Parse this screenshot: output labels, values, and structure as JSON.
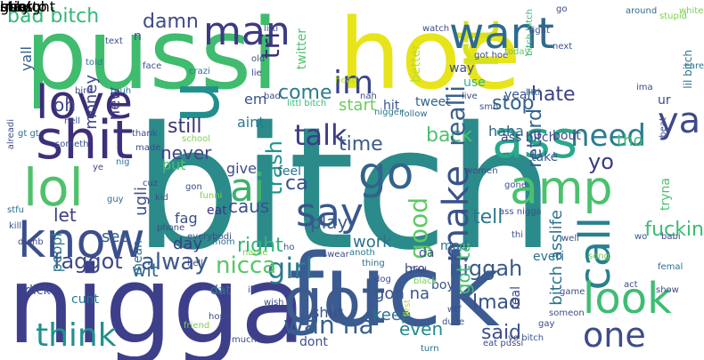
{
  "words": [
    {
      "text": "bitch",
      "color": "#2b8a8a",
      "rot": false
    },
    {
      "text": "nigga",
      "color": "#3e3f8a",
      "rot": false
    },
    {
      "text": "fuck",
      "color": "#3b5b92",
      "rot": false
    },
    {
      "text": "pussi",
      "color": "#3fbc6d",
      "rot": false
    },
    {
      "text": "hoe",
      "color": "#e7e419",
      "rot": false
    },
    {
      "text": "rt",
      "color": "#d6e21a",
      "rot": true
    },
    {
      "text": "u",
      "color": "#238f8c",
      "rot": true
    },
    {
      "text": "shit",
      "color": "#3d2f7a",
      "rot": false
    },
    {
      "text": "lol",
      "color": "#4fc16b",
      "rot": false
    },
    {
      "text": "know",
      "color": "#3b4f8c",
      "rot": false
    },
    {
      "text": "got",
      "color": "#3c5a8e",
      "rot": false
    },
    {
      "text": "ass",
      "color": "#2aa88a",
      "rot": false
    },
    {
      "text": "amp",
      "color": "#4ac16d",
      "rot": false
    },
    {
      "text": "want",
      "color": "#2f6b8e",
      "rot": false
    },
    {
      "text": "go",
      "color": "#33638d",
      "rot": false
    },
    {
      "text": "say",
      "color": "#38578c",
      "rot": false
    },
    {
      "text": "make",
      "color": "#3a528b",
      "rot": true
    },
    {
      "text": "call",
      "color": "#27808e",
      "rot": true
    },
    {
      "text": "look",
      "color": "#3fbc73",
      "rot": false
    },
    {
      "text": "one",
      "color": "#3e4c8a",
      "rot": false
    },
    {
      "text": "love",
      "color": "#3c2d78",
      "rot": false
    },
    {
      "text": "ai",
      "color": "#3db26c",
      "rot": false
    },
    {
      "text": "think",
      "color": "#21918c",
      "rot": false
    },
    {
      "text": "girl",
      "color": "#2c7c8e",
      "rot": false
    },
    {
      "text": "im",
      "color": "#38458a",
      "rot": false
    },
    {
      "text": "man",
      "color": "#3d3a84",
      "rot": false
    },
    {
      "text": "talk",
      "color": "#3d3d86",
      "rot": false
    },
    {
      "text": "need",
      "color": "#2b7d8e",
      "rot": false
    },
    {
      "text": "ya",
      "color": "#3e4a89",
      "rot": false
    },
    {
      "text": "bad bitch",
      "color": "#35b779",
      "rot": false
    },
    {
      "text": "faggot",
      "color": "#3f4889",
      "rot": false
    },
    {
      "text": "niggah",
      "color": "#38598c",
      "rot": false
    },
    {
      "text": "wan na",
      "color": "#355f8d",
      "rot": false
    },
    {
      "text": "nicca",
      "color": "#56c667",
      "rot": false
    },
    {
      "text": "damn",
      "color": "#3e4a89",
      "rot": false
    },
    {
      "text": "hate",
      "color": "#3f3f87",
      "rot": false
    },
    {
      "text": "trash",
      "color": "#20938c",
      "rot": true
    },
    {
      "text": "tri",
      "color": "#3a2e7a",
      "rot": true
    },
    {
      "text": "come",
      "color": "#2a7b8e",
      "rot": false
    },
    {
      "text": "still",
      "color": "#3b3479",
      "rot": false
    },
    {
      "text": "never",
      "color": "#3f4788",
      "rot": false
    },
    {
      "text": "right",
      "color": "#33b57a",
      "rot": false
    },
    {
      "text": "time",
      "color": "#3a5a8d",
      "rot": false
    },
    {
      "text": "back",
      "color": "#4bc26c",
      "rot": false
    },
    {
      "text": "realli",
      "color": "#3a5f8c",
      "rot": true
    },
    {
      "text": "good",
      "color": "#5ec962",
      "rot": true
    },
    {
      "text": "tell",
      "color": "#2a798e",
      "rot": false
    },
    {
      "text": "yo",
      "color": "#3a3b84",
      "rot": false
    },
    {
      "text": "retard",
      "color": "#33628d",
      "rot": true
    },
    {
      "text": "stop",
      "color": "#34608d",
      "rot": false
    },
    {
      "text": "ca",
      "color": "#3c4e8a",
      "rot": false
    },
    {
      "text": "caus",
      "color": "#3b528b",
      "rot": false
    },
    {
      "text": "let",
      "color": "#3e3c86",
      "rot": false
    },
    {
      "text": "see",
      "color": "#355e8d",
      "rot": false
    },
    {
      "text": "wit",
      "color": "#2f6c8e",
      "rot": false
    },
    {
      "text": "lmao",
      "color": "#3a528b",
      "rot": false
    },
    {
      "text": "said",
      "color": "#3d4f8a",
      "rot": false
    },
    {
      "text": "day",
      "color": "#3d3b85",
      "rot": false
    },
    {
      "text": "play",
      "color": "#3a5a8d",
      "rot": false
    },
    {
      "text": "work",
      "color": "#2e6f8e",
      "rot": false
    },
    {
      "text": "alway",
      "color": "#3b5a8c",
      "rot": false
    },
    {
      "text": "got ta",
      "color": "#42be71",
      "rot": true
    },
    {
      "text": "gon na",
      "color": "#39568c",
      "rot": false
    },
    {
      "text": "keep",
      "color": "#2d718e",
      "rot": false
    },
    {
      "text": "even",
      "color": "#23888e",
      "rot": false
    },
    {
      "text": "fuckin",
      "color": "#3bbb75",
      "rot": false
    },
    {
      "text": "bitch asslife",
      "color": "#2c738e",
      "rot": true
    },
    {
      "text": "tho",
      "color": "#37b878",
      "rot": false
    },
    {
      "text": "oh",
      "color": "#3e4989",
      "rot": false
    },
    {
      "text": "money",
      "color": "#3f4788",
      "rot": true
    },
    {
      "text": "new",
      "color": "#443983",
      "rot": true
    },
    {
      "text": "ugli",
      "color": "#3e4a89",
      "rot": true
    },
    {
      "text": "yall",
      "color": "#355f8d",
      "rot": true
    },
    {
      "text": "em",
      "color": "#3b528b",
      "rot": false
    },
    {
      "text": "aint",
      "color": "#2a788e",
      "rot": false
    },
    {
      "text": "put",
      "color": "#48c16e",
      "rot": false
    },
    {
      "text": "give",
      "color": "#3e4c8a",
      "rot": false
    },
    {
      "text": "feel",
      "color": "#2b748e",
      "rot": false
    },
    {
      "text": "start",
      "color": "#6ccd5a",
      "rot": false
    },
    {
      "text": "hit",
      "color": "#3a538b",
      "rot": false
    },
    {
      "text": "haha",
      "color": "#31678e",
      "rot": false
    },
    {
      "text": "ass bitch",
      "color": "#3e4a89",
      "rot": false
    },
    {
      "text": "take",
      "color": "#3a5a8d",
      "rot": false
    },
    {
      "text": "bout",
      "color": "#3e4c8a",
      "rot": false
    },
    {
      "text": "tweet",
      "color": "#33628d",
      "rot": false
    },
    {
      "text": "way",
      "color": "#3d4e8a",
      "rot": false
    },
    {
      "text": "use",
      "color": "#32b67a",
      "rot": false
    },
    {
      "text": "yeah",
      "color": "#3a548c",
      "rot": false
    },
    {
      "text": "peopl",
      "color": "#2a7a8e",
      "rot": true
    },
    {
      "text": "mean",
      "color": "#2e6e8e",
      "rot": true
    },
    {
      "text": "fag",
      "color": "#3d4e8a",
      "rot": false
    },
    {
      "text": "mad",
      "color": "#2c738e",
      "rot": false
    },
    {
      "text": "da",
      "color": "#3b528b",
      "rot": false
    },
    {
      "text": "cunt",
      "color": "#2a798e",
      "rot": false
    },
    {
      "text": "shut",
      "color": "#3b528b",
      "rot": false
    },
    {
      "text": "bro",
      "color": "#3e4989",
      "rot": false
    },
    {
      "text": "boy",
      "color": "#39568c",
      "rot": false
    },
    {
      "text": "real",
      "color": "#3d4b89",
      "rot": true
    },
    {
      "text": "dont",
      "color": "#3a548c",
      "rot": false
    },
    {
      "text": "everi",
      "color": "#2d708e",
      "rot": false
    },
    {
      "text": "dick",
      "color": "#3d4d8a",
      "rot": false
    },
    {
      "text": "dat",
      "color": "#2a788e",
      "rot": false
    },
    {
      "text": "ur",
      "color": "#3d4b89",
      "rot": false
    },
    {
      "text": "twitter",
      "color": "#4fc46a",
      "rot": true
    },
    {
      "text": "eat",
      "color": "#3d3784",
      "rot": false
    },
    {
      "text": "n",
      "color": "#3d4e8a",
      "rot": false
    },
    {
      "text": "tryna",
      "color": "#48c16e",
      "rot": true
    },
    {
      "text": "better",
      "color": "#b8de29",
      "rot": true
    },
    {
      "text": "lil bitch",
      "color": "#2b758e",
      "rot": true
    },
    {
      "text": "bitch bitch",
      "color": "#35b779",
      "rot": true
    },
    {
      "text": "go",
      "color": "#3e4a89",
      "rot": false
    },
    {
      "text": "littl",
      "color": "#3e4989",
      "rot": false
    },
    {
      "text": "white",
      "color": "#7ad151",
      "rot": false
    },
    {
      "text": "around",
      "color": "#2f6c8e",
      "rot": false
    },
    {
      "text": "stupid",
      "color": "#7ad151",
      "rot": false
    },
    {
      "text": "fight",
      "color": "#3d4e8a",
      "rot": false
    },
    {
      "text": "watch",
      "color": "#3e4a89",
      "rot": false
    },
    {
      "text": "got hoe",
      "color": "#3e4a89",
      "rot": false
    },
    {
      "text": "today",
      "color": "#5ec962",
      "rot": false
    },
    {
      "text": "next",
      "color": "#3b528b",
      "rot": false
    },
    {
      "text": "care",
      "color": "#2c728e",
      "rot": false
    },
    {
      "text": "ima",
      "color": "#3e4a89",
      "rot": false
    },
    {
      "text": "beat",
      "color": "#3d4b89",
      "rot": true
    },
    {
      "text": "littl",
      "color": "#2e6e8e",
      "rot": false
    },
    {
      "text": "live",
      "color": "#3e4989",
      "rot": false
    },
    {
      "text": "smh",
      "color": "#3b528b",
      "rot": false
    },
    {
      "text": "text",
      "color": "#3e4a89",
      "rot": false
    },
    {
      "text": "told",
      "color": "#2a788e",
      "rot": false
    },
    {
      "text": "face",
      "color": "#3d4e8a",
      "rot": false
    },
    {
      "text": "crazi",
      "color": "#2c728e",
      "rot": false
    },
    {
      "text": "bird",
      "color": "#3e4a89",
      "rot": false
    },
    {
      "text": "bruh",
      "color": "#2e6e8e",
      "rot": false
    },
    {
      "text": "old",
      "color": "#3b528b",
      "rot": false
    },
    {
      "text": "lie",
      "color": "#3e4989",
      "rot": false
    },
    {
      "text": "bad",
      "color": "#3e4a89",
      "rot": false
    },
    {
      "text": "littl bitch",
      "color": "#35b779",
      "rot": false
    },
    {
      "text": "head",
      "color": "#b8de29",
      "rot": false
    },
    {
      "text": "nah",
      "color": "#3e4a89",
      "rot": false
    },
    {
      "text": "nigger",
      "color": "#2a788e",
      "rot": false
    },
    {
      "text": "follow",
      "color": "#2e6e8e",
      "rot": false
    },
    {
      "text": "alreadi",
      "color": "#3d4e8a",
      "rot": true
    },
    {
      "text": "hell",
      "color": "#3b528b",
      "rot": false
    },
    {
      "text": "gt gt",
      "color": "#2e6e8e",
      "rot": false
    },
    {
      "text": "someth",
      "color": "#3b528b",
      "rot": false
    },
    {
      "text": "school",
      "color": "#7ad151",
      "rot": false
    },
    {
      "text": "made",
      "color": "#3e4a89",
      "rot": false
    },
    {
      "text": "thank",
      "color": "#3d4e8a",
      "rot": false
    },
    {
      "text": "guy",
      "color": "#2e6e8e",
      "rot": false
    },
    {
      "text": "ye",
      "color": "#3e4a89",
      "rot": false
    },
    {
      "text": "nig",
      "color": "#2a788e",
      "rot": false
    },
    {
      "text": "cuz",
      "color": "#3e4989",
      "rot": false
    },
    {
      "text": "kid",
      "color": "#3b528b",
      "rot": false
    },
    {
      "text": "gon",
      "color": "#3e4a89",
      "rot": false
    },
    {
      "text": "funni",
      "color": "#7ad151",
      "rot": false
    },
    {
      "text": "stfu",
      "color": "#2e6e8e",
      "rot": false
    },
    {
      "text": "kill",
      "color": "#3b528b",
      "rot": false
    },
    {
      "text": "dumb",
      "color": "#3e4a89",
      "rot": false
    },
    {
      "text": "everybodi",
      "color": "#3d4e8a",
      "rot": false
    },
    {
      "text": "phone",
      "color": "#3e4a89",
      "rot": false
    },
    {
      "text": "mom",
      "color": "#2e6e8e",
      "rot": false
    },
    {
      "text": "name",
      "color": "#7ad151",
      "rot": false
    },
    {
      "text": "ho",
      "color": "#3b528b",
      "rot": false
    },
    {
      "text": "swear",
      "color": "#3e4a89",
      "rot": false
    },
    {
      "text": "anoth",
      "color": "#2a788e",
      "rot": false
    },
    {
      "text": "hell",
      "color": "#3e4989",
      "rot": false
    },
    {
      "text": "ill",
      "color": "#3b528b",
      "rot": false
    },
    {
      "text": "wish",
      "color": "#3d4e8a",
      "rot": false
    },
    {
      "text": "much",
      "color": "#3e4a89",
      "rot": false
    },
    {
      "text": "friend",
      "color": "#7ad151",
      "rot": false
    },
    {
      "text": "hope",
      "color": "#3e4a89",
      "rot": false
    },
    {
      "text": "thing",
      "color": "#2e6e8e",
      "rot": false
    },
    {
      "text": "find",
      "color": "#3b528b",
      "rot": false
    },
    {
      "text": "black",
      "color": "#7ad151",
      "rot": false
    },
    {
      "text": "dog",
      "color": "#3e4989",
      "rot": false
    },
    {
      "text": "first",
      "color": "#b8de29",
      "rot": true
    },
    {
      "text": "wtf",
      "color": "#3e4a89",
      "rot": false
    },
    {
      "text": "dude",
      "color": "#3b528b",
      "rot": false
    },
    {
      "text": "turn",
      "color": "#2e6e8e",
      "rot": false
    },
    {
      "text": "eat pussi",
      "color": "#3e4a89",
      "rot": false
    },
    {
      "text": "yo bitch",
      "color": "#3b528b",
      "rot": false
    },
    {
      "text": "gay",
      "color": "#3e4989",
      "rot": false
    },
    {
      "text": "someon",
      "color": "#3d4e8a",
      "rot": false
    },
    {
      "text": "game",
      "color": "#3e4a89",
      "rot": false
    },
    {
      "text": "femal",
      "color": "#2e6e8e",
      "rot": false
    },
    {
      "text": "wo",
      "color": "#3b528b",
      "rot": false
    },
    {
      "text": "babi",
      "color": "#3e4a89",
      "rot": false
    },
    {
      "text": "song",
      "color": "#7ad151",
      "rot": false
    },
    {
      "text": "act",
      "color": "#3e4989",
      "rot": false
    },
    {
      "text": "thi",
      "color": "#3b528b",
      "rot": false
    },
    {
      "text": "well",
      "color": "#3e4a89",
      "rot": false
    },
    {
      "text": "gone",
      "color": "#3d4e8a",
      "rot": false
    },
    {
      "text": "women",
      "color": "#3e4a89",
      "rot": false
    },
    {
      "text": "ass nigga",
      "color": "#3b528b",
      "rot": false
    },
    {
      "text": "show",
      "color": "#3e4a89",
      "rot": false
    },
    {
      "text": "straight",
      "color": "#7ad151",
      "rot": true
    },
    {
      "text": "ask",
      "color": "#3e4989",
      "rot": true
    },
    {
      "text": "miss",
      "color": "#3d4e8a",
      "rot": false
    },
    {
      "text": "ghetto",
      "color": "#3b528b",
      "rot": true
    },
    {
      "text": "stay",
      "color": "#3e4a89",
      "rot": false
    },
    {
      "text": "hoe",
      "color": "#3e4a89",
      "rot": false
    }
  ]
}
